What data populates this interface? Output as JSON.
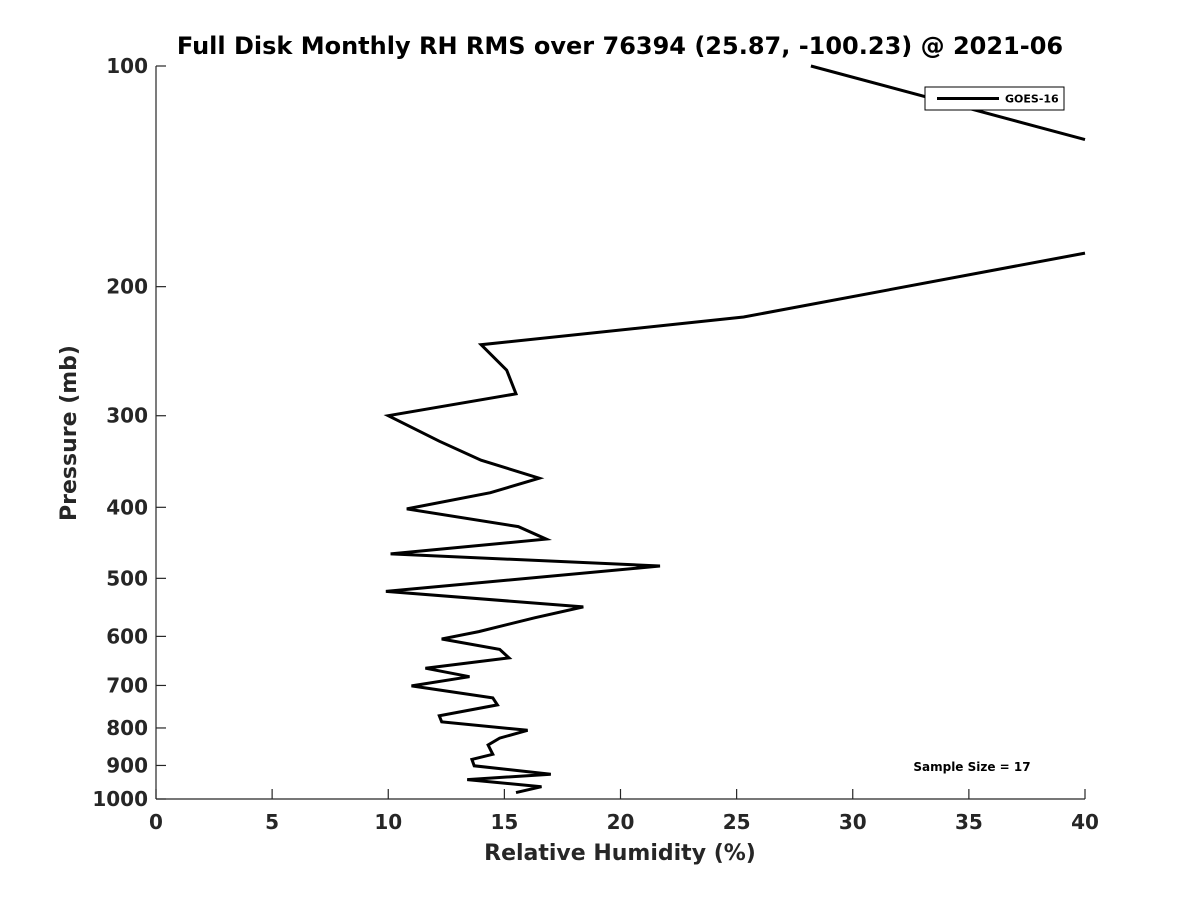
{
  "chart_data": {
    "type": "line",
    "title": "Full Disk Monthly RH RMS over 76394 (25.87, -100.23) @ 2021-06",
    "xlabel": "Relative Humidity (%)",
    "ylabel": "Pressure (mb)",
    "xlim": [
      0,
      40
    ],
    "ylim": [
      100,
      1000
    ],
    "y_scale": "log",
    "y_reversed": true,
    "x_ticks": [
      0,
      5,
      10,
      15,
      20,
      25,
      30,
      35,
      40
    ],
    "y_ticks": [
      100,
      200,
      300,
      400,
      500,
      600,
      700,
      800,
      900,
      1000
    ],
    "grid": false,
    "legend_position": "top-right",
    "annotation": "Sample Size = 17",
    "series": [
      {
        "name": "GOES-16",
        "color": "#000000",
        "points": [
          {
            "x": 28.2,
            "y": 100
          },
          {
            "x": 40.0,
            "y": 126
          },
          {
            "x": null,
            "y": null
          },
          {
            "x": 40.0,
            "y": 180
          },
          {
            "x": 25.3,
            "y": 220
          },
          {
            "x": 14.0,
            "y": 240
          },
          {
            "x": 15.1,
            "y": 260
          },
          {
            "x": 15.5,
            "y": 280
          },
          {
            "x": 10.0,
            "y": 300
          },
          {
            "x": 12.2,
            "y": 325
          },
          {
            "x": 14.0,
            "y": 345
          },
          {
            "x": 16.5,
            "y": 365
          },
          {
            "x": 14.4,
            "y": 382
          },
          {
            "x": 10.8,
            "y": 402
          },
          {
            "x": 15.6,
            "y": 425
          },
          {
            "x": 16.8,
            "y": 442
          },
          {
            "x": 10.1,
            "y": 463
          },
          {
            "x": 21.7,
            "y": 481
          },
          {
            "x": 9.9,
            "y": 521
          },
          {
            "x": 18.4,
            "y": 547
          },
          {
            "x": 16.3,
            "y": 566
          },
          {
            "x": 13.9,
            "y": 591
          },
          {
            "x": 12.3,
            "y": 605
          },
          {
            "x": 14.8,
            "y": 625
          },
          {
            "x": 15.2,
            "y": 642
          },
          {
            "x": 11.6,
            "y": 663
          },
          {
            "x": 13.5,
            "y": 681
          },
          {
            "x": 11.0,
            "y": 701
          },
          {
            "x": 14.5,
            "y": 728
          },
          {
            "x": 14.7,
            "y": 744
          },
          {
            "x": 12.2,
            "y": 770
          },
          {
            "x": 12.3,
            "y": 785
          },
          {
            "x": 16.0,
            "y": 806
          },
          {
            "x": 14.8,
            "y": 826
          },
          {
            "x": 14.3,
            "y": 844
          },
          {
            "x": 14.5,
            "y": 869
          },
          {
            "x": 13.6,
            "y": 883
          },
          {
            "x": 13.7,
            "y": 901
          },
          {
            "x": 17.0,
            "y": 925
          },
          {
            "x": 13.4,
            "y": 941
          },
          {
            "x": 16.6,
            "y": 962
          },
          {
            "x": 15.5,
            "y": 980
          }
        ]
      }
    ]
  }
}
